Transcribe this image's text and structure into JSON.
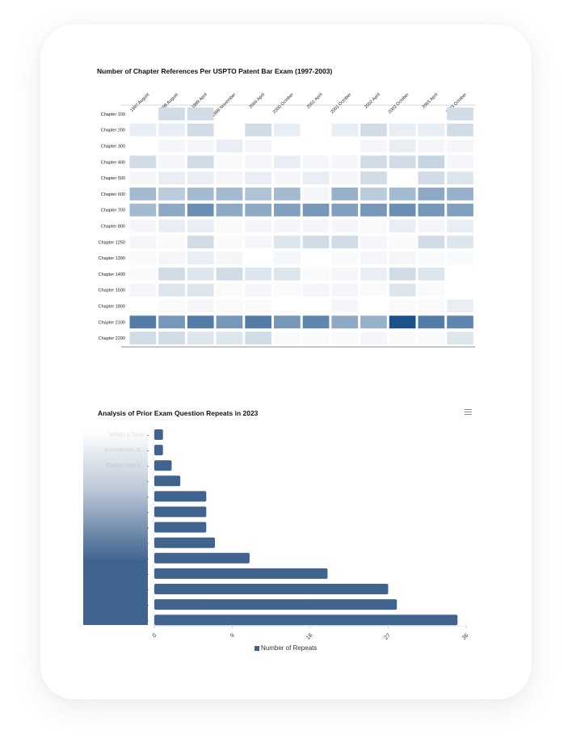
{
  "chart_data": [
    {
      "type": "heatmap",
      "title": "Number of Chapter References Per USPTO Patent Bar Exam (1997-2003)",
      "columns": [
        "1997 August",
        "1998 August",
        "1999 April",
        "1999 November",
        "2000 April",
        "2000 October",
        "2001 April",
        "2001 October",
        "2002 April",
        "2002 October",
        "2003 April",
        "2003 October"
      ],
      "rows": [
        "Chapter 100",
        "Chapter 200",
        "Chapter 300",
        "Chapter 400",
        "Chapter 500",
        "Chapter 600",
        "Chapter 700",
        "Chapter 800",
        "Chapter 1250",
        "Chapter 1300",
        "Chapter 1400",
        "Chapter 1500",
        "Chapter 1800",
        "Chapter 2100",
        "Chapter 2200"
      ],
      "value_scale": "relative intensity 0-10 (no scale printed)",
      "values": [
        [
          null,
          2,
          2,
          null,
          null,
          null,
          null,
          null,
          null,
          null,
          null,
          2
        ],
        [
          1,
          1,
          2,
          null,
          2,
          1,
          null,
          1,
          2,
          1,
          1,
          2
        ],
        [
          null,
          0.5,
          0.5,
          1,
          0.5,
          null,
          null,
          null,
          0.5,
          1,
          0.5,
          0.5
        ],
        [
          2,
          0.5,
          2,
          0.3,
          0.5,
          1,
          0.5,
          0.5,
          2,
          2,
          2.5,
          0.5
        ],
        [
          0.5,
          1,
          1,
          0.5,
          1,
          0.5,
          1,
          0.5,
          2,
          null,
          2,
          1.5
        ],
        [
          4,
          3,
          4,
          4,
          3.5,
          4,
          0.5,
          4.5,
          3,
          4,
          5,
          4.5
        ],
        [
          4,
          5,
          6.5,
          5,
          5,
          5.5,
          6,
          5.5,
          6,
          6.5,
          6,
          5.5
        ],
        [
          0.5,
          1,
          1,
          0.3,
          0.5,
          0.5,
          0.5,
          0.5,
          0.3,
          1,
          0.5,
          1
        ],
        [
          0.5,
          0.3,
          2,
          0.3,
          0.5,
          1.5,
          2,
          2,
          0.5,
          0.3,
          2,
          1.5
        ],
        [
          0.3,
          0.5,
          1,
          0.5,
          null,
          0.5,
          null,
          0.3,
          0.5,
          0.5,
          0.3,
          0.3
        ],
        [
          0.3,
          2,
          1.5,
          2,
          1.5,
          1.5,
          0.3,
          0.5,
          1,
          2,
          1.5,
          null
        ],
        [
          0.5,
          1.5,
          1.5,
          0.3,
          0.5,
          0.3,
          0.5,
          0.5,
          0.3,
          1.5,
          0.3,
          null
        ],
        [
          null,
          0.3,
          0.5,
          0.3,
          0.3,
          null,
          null,
          0.5,
          null,
          0.3,
          0.3,
          1
        ],
        [
          7.5,
          6,
          7.5,
          6,
          7.5,
          6,
          7,
          5,
          4.5,
          10,
          7.5,
          7
        ],
        [
          2,
          2,
          1.5,
          1.5,
          2,
          0.3,
          0.3,
          0.3,
          0.5,
          0.3,
          0.3,
          1.5
        ]
      ],
      "color_low": "#ffffff",
      "color_high": "#1a5289"
    },
    {
      "type": "bar",
      "orientation": "horizontal",
      "title": "Analysis of Prior Exam Question Repeats in 2023",
      "categories": [
        "Which is false:",
        "Amendment at...",
        "Claims may b...",
        "",
        "",
        "",
        "",
        "",
        "",
        "",
        "",
        "",
        ""
      ],
      "series": [
        {
          "name": "Number of Repeats",
          "values": [
            1,
            1,
            2,
            3,
            6,
            6,
            6,
            7,
            11,
            20,
            27,
            28,
            35
          ],
          "color": "#41648f"
        }
      ],
      "xlim": [
        0,
        36
      ],
      "xticks": [
        "0",
        "9",
        "18",
        "27",
        "36"
      ],
      "legend": "bottom"
    }
  ]
}
